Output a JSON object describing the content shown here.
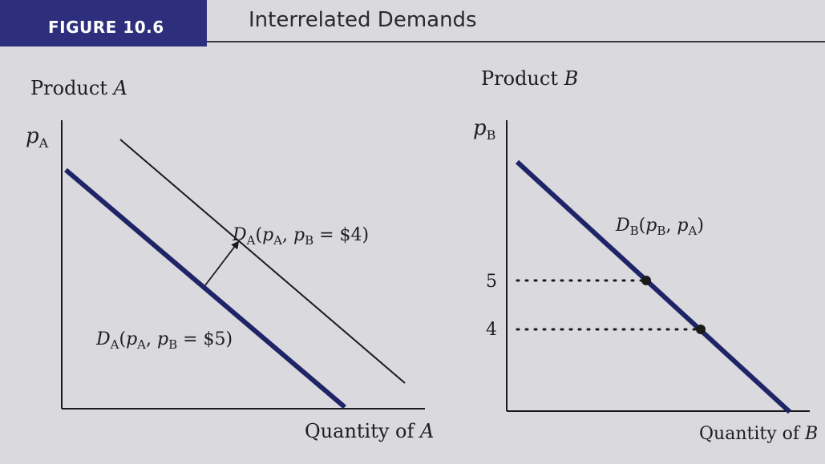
{
  "figure": {
    "number_label": "FIGURE 10.6",
    "title": "Interrelated Demands"
  },
  "colors": {
    "header_band": "#2d2f7c",
    "demand_curve": "#1f2466",
    "shifted_curve": "#1a1a1a",
    "background": "#d9d9de"
  },
  "panel_a": {
    "title_prefix": "Product ",
    "title_var": "A",
    "y_axis_label": "p",
    "y_axis_sub": "A",
    "x_axis_label_prefix": "Quantity of ",
    "x_axis_label_var": "A",
    "curve_original": {
      "D": "D",
      "D_sub": "A",
      "open": "(",
      "p1": "p",
      "p1_sub": "A",
      "comma": ", ",
      "p2": "p",
      "p2_sub": "B",
      "eq": " = $5)"
    },
    "curve_shifted": {
      "D": "D",
      "D_sub": "A",
      "open": "(",
      "p1": "p",
      "p1_sub": "A",
      "comma": ", ",
      "p2": "p",
      "p2_sub": "B",
      "eq": " = $4)"
    },
    "shift_arrow_icon": "arrow-up-right-icon"
  },
  "panel_b": {
    "title_prefix": "Product ",
    "title_var": "B",
    "y_axis_label": "p",
    "y_axis_sub": "B",
    "x_axis_label_prefix": "Quantity of ",
    "x_axis_label_var": "B",
    "curve": {
      "D": "D",
      "D_sub": "B",
      "open": "(",
      "p1": "p",
      "p1_sub": "B",
      "comma": ", ",
      "p2": "p",
      "p2_sub": "A",
      "close": ")"
    },
    "price_ticks": [
      {
        "label": "5",
        "value": 5
      },
      {
        "label": "4",
        "value": 4
      }
    ]
  }
}
